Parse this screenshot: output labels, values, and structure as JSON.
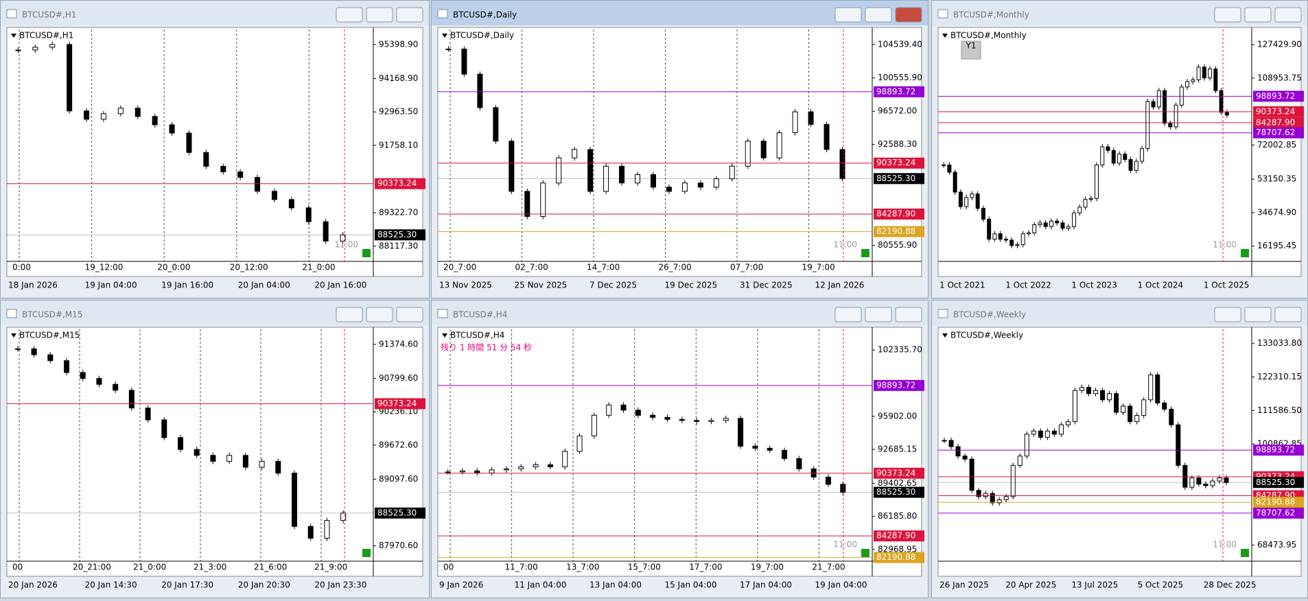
{
  "windows": [
    {
      "title": "BTCUSD#,H1",
      "chart_label": "BTCUSD#,H1",
      "ylim": [
        87666,
        95940
      ],
      "yticks": [
        {
          "value": 95398.9,
          "label": "95398.90"
        },
        {
          "value": 94168.9,
          "label": "94168.90"
        },
        {
          "value": 92963.5,
          "label": "92963.50"
        },
        {
          "value": 91758.1,
          "label": "91758.10"
        },
        {
          "value": 89322.7,
          "label": "89322.70"
        },
        {
          "value": 88117.3,
          "label": "88117.30"
        }
      ],
      "levels": [
        {
          "value": 90373.24,
          "label": "90373.24",
          "color": "#dc143c"
        },
        {
          "value": 88525.3,
          "label": "88525.30",
          "color": "#000000"
        }
      ],
      "time_marks": [
        "0:00",
        "19_12:00",
        "20_0:00",
        "20_12:00",
        "21_0:00"
      ],
      "time_labels": [
        "18 Jan 2026",
        "19 Jan 04:00",
        "19 Jan 16:00",
        "20 Jan 04:00",
        "20 Jan 16:00"
      ],
      "closes": [
        95200,
        95300,
        95400,
        93000,
        92700,
        92900,
        93100,
        92800,
        92500,
        92200,
        91500,
        91000,
        90800,
        90600,
        90100,
        89800,
        89500,
        89000,
        88300,
        88525
      ],
      "countdown": "11:00"
    },
    {
      "title": "BTCUSD#,Daily",
      "chart_label": "BTCUSD#,Daily",
      "ylim": [
        78962,
        106332
      ],
      "yticks": [
        {
          "value": 104539.4,
          "label": "104539.40"
        },
        {
          "value": 100555.9,
          "label": "100555.90"
        },
        {
          "value": 96572,
          "label": "96572.00"
        },
        {
          "value": 92588.3,
          "label": "92588.30"
        },
        {
          "value": 80555.9,
          "label": "80555.90"
        }
      ],
      "levels": [
        {
          "value": 98893.72,
          "label": "98893.72",
          "color": "#9400d3"
        },
        {
          "value": 90373.24,
          "label": "90373.24",
          "color": "#dc143c"
        },
        {
          "value": 88525.3,
          "label": "88525.30",
          "color": "#000000"
        },
        {
          "value": 84287.9,
          "label": "84287.90",
          "color": "#dc143c"
        },
        {
          "value": 82190.88,
          "label": "82190.88",
          "color": "#daa520"
        }
      ],
      "time_marks": [
        "20_7:00",
        "02_7:00",
        "14_7:00",
        "26_7:00",
        "07_7:00",
        "19_7:00"
      ],
      "time_labels": [
        "13 Nov 2025",
        "25 Nov 2025",
        "7 Dec 2025",
        "19 Dec 2025",
        "31 Dec 2025",
        "12 Jan 2026"
      ],
      "closes": [
        104000,
        101000,
        97000,
        93000,
        87000,
        84000,
        88000,
        91000,
        92000,
        87000,
        90000,
        88000,
        89000,
        87500,
        87000,
        88000,
        87500,
        88500,
        90000,
        93000,
        91000,
        94000,
        96500,
        95000,
        92000,
        88525
      ],
      "countdown": "11:00"
    },
    {
      "title": "BTCUSD#,Monthly",
      "chart_label": "BTCUSD#,Monthly",
      "period_button": "Y1",
      "ylim": [
        9265,
        135746
      ],
      "yticks": [
        {
          "value": 127429.9,
          "label": "127429.90"
        },
        {
          "value": 108953.75,
          "label": "108953.75"
        },
        {
          "value": 72002.85,
          "label": "72002.85"
        },
        {
          "value": 53150.35,
          "label": "53150.35"
        },
        {
          "value": 34674.9,
          "label": "34674.90"
        },
        {
          "value": 16195.45,
          "label": "16195.45"
        }
      ],
      "levels": [
        {
          "value": 98893.72,
          "label": "98893.72",
          "color": "#9400d3"
        },
        {
          "value": 90373.24,
          "label": "90373.24",
          "color": "#dc143c"
        },
        {
          "value": 84287.9,
          "label": "84287.90",
          "color": "#dc143c"
        },
        {
          "value": 78707.62,
          "label": "78707.62",
          "color": "#9400d3"
        }
      ],
      "time_marks": [],
      "time_labels": [
        "1 Oct 2021",
        "1 Oct 2022",
        "1 Oct 2023",
        "1 Oct 2024",
        "1 Oct 2025"
      ],
      "closes": [
        61000,
        57000,
        46000,
        38000,
        43000,
        45000,
        37000,
        31000,
        20000,
        23000,
        20000,
        19500,
        16500,
        17000,
        23000,
        23500,
        28000,
        29000,
        27000,
        30000,
        29000,
        26000,
        27000,
        34500,
        37700,
        42000,
        42500,
        61000,
        71000,
        69000,
        62000,
        67000,
        64000,
        58000,
        63000,
        70000,
        96000,
        93000,
        102000,
        84000,
        82000,
        94000,
        104000,
        107000,
        108000,
        115000,
        109000,
        114000,
        102000,
        90000,
        88525
      ],
      "countdown": "11:00"
    },
    {
      "title": "BTCUSD#,M15",
      "chart_label": "BTCUSD#,M15",
      "ylim": [
        87758,
        91630
      ],
      "yticks": [
        {
          "value": 91374.6,
          "label": "91374.60"
        },
        {
          "value": 90799.6,
          "label": "90799.60"
        },
        {
          "value": 90236.1,
          "label": "90236.10"
        },
        {
          "value": 89672.6,
          "label": "89672.60"
        },
        {
          "value": 89097.6,
          "label": "89097.60"
        },
        {
          "value": 87970.6,
          "label": "87970.60"
        }
      ],
      "levels": [
        {
          "value": 90373.24,
          "label": "90373.24",
          "color": "#dc143c"
        },
        {
          "value": 88525.3,
          "label": "88525.30",
          "color": "#000000"
        }
      ],
      "time_marks": [
        "00",
        "20_21:00",
        "21_0:00",
        "21_3:00",
        "21_6:00",
        "21_9:00"
      ],
      "time_labels": [
        "20 Jan 2026",
        "20 Jan 14:30",
        "20 Jan 17:30",
        "20 Jan 20:30",
        "20 Jan 23:30"
      ],
      "closes": [
        91300,
        91200,
        91100,
        90900,
        90800,
        90700,
        90600,
        90300,
        90100,
        89800,
        89600,
        89500,
        89400,
        89500,
        89300,
        89400,
        89200,
        88300,
        88100,
        88400,
        88525
      ]
    },
    {
      "title": "BTCUSD#,H4",
      "chart_label": "BTCUSD#,H4",
      "note": "残り 1 時間 51 分 54 秒",
      "ylim": [
        82100,
        104346
      ],
      "yticks": [
        {
          "value": 102335.7,
          "label": "102335.70"
        },
        {
          "value": 95902,
          "label": "95902.00"
        },
        {
          "value": 92685.15,
          "label": "92685.15"
        },
        {
          "value": 89402.65,
          "label": "89402.65"
        },
        {
          "value": 86185.8,
          "label": "86185.80"
        },
        {
          "value": 82968.95,
          "label": "82968.95"
        }
      ],
      "levels": [
        {
          "value": 98893.72,
          "label": "98893.72",
          "color": "#9400d3"
        },
        {
          "value": 90373.24,
          "label": "90373.24",
          "color": "#dc143c"
        },
        {
          "value": 88525.3,
          "label": "88525.30",
          "color": "#000000"
        },
        {
          "value": 84287.9,
          "label": "84287.90",
          "color": "#dc143c"
        },
        {
          "value": 82190.88,
          "label": "82190.88",
          "color": "#daa520"
        }
      ],
      "time_marks": [
        "00",
        "11_7:00",
        "13_7:00",
        "15_7:00",
        "17_7:00",
        "19_7:00",
        "21_7:00"
      ],
      "time_labels": [
        "9 Jan 2026",
        "11 Jan 04:00",
        "13 Jan 04:00",
        "15 Jan 04:00",
        "17 Jan 04:00",
        "19 Jan 04:00"
      ],
      "closes": [
        90500,
        90600,
        90400,
        90700,
        90800,
        91000,
        91200,
        91000,
        92500,
        94000,
        96000,
        97000,
        96500,
        96000,
        95800,
        95600,
        95500,
        95400,
        95500,
        95700,
        93000,
        92800,
        92600,
        91800,
        90800,
        90000,
        89300,
        88525
      ],
      "countdown": "11:00"
    },
    {
      "title": "BTCUSD#,Weekly",
      "chart_label": "BTCUSD#,Weekly",
      "ylim": [
        64186,
        137590
      ],
      "yticks": [
        {
          "value": 133033.8,
          "label": "133033.80"
        },
        {
          "value": 122310.15,
          "label": "122310.15"
        },
        {
          "value": 111586.5,
          "label": "111586.50"
        },
        {
          "value": 100862.85,
          "label": "100862.85"
        },
        {
          "value": 68473.95,
          "label": "68473.95"
        }
      ],
      "levels": [
        {
          "value": 98893.72,
          "label": "98893.72",
          "color": "#9400d3"
        },
        {
          "value": 90373.24,
          "label": "90373.24",
          "color": "#dc143c"
        },
        {
          "value": 88525.3,
          "label": "88525.30",
          "color": "#000000"
        },
        {
          "value": 84287.9,
          "label": "84287.90",
          "color": "#dc143c"
        },
        {
          "value": 82190.88,
          "label": "82190.88",
          "color": "#daa520"
        },
        {
          "value": 78707.62,
          "label": "78707.62",
          "color": "#9400d3"
        }
      ],
      "time_marks": [],
      "time_labels": [
        "26 Jan 2025",
        "20 Apr 2025",
        "13 Jul 2025",
        "5 Oct 2025",
        "28 Dec 2025"
      ],
      "closes": [
        102000,
        100000,
        97000,
        96000,
        86000,
        84000,
        85000,
        82000,
        83000,
        84000,
        94000,
        97000,
        104000,
        105000,
        103000,
        105000,
        104000,
        107000,
        108000,
        118000,
        119000,
        117000,
        118000,
        115000,
        117000,
        111000,
        113000,
        108000,
        110000,
        115000,
        123000,
        114000,
        112000,
        107000,
        94000,
        87000,
        90000,
        88000,
        87500,
        89000,
        90000,
        88525
      ],
      "countdown": "11:00"
    }
  ]
}
